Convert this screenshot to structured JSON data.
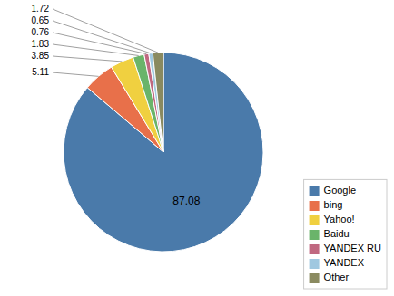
{
  "chart_data": {
    "type": "pie",
    "categories": [
      "Google",
      "bing",
      "Yahoo!",
      "Baidu",
      "YANDEX RU",
      "YANDEX",
      "Other"
    ],
    "values": [
      87.08,
      5.11,
      3.85,
      1.83,
      0.76,
      0.65,
      1.72
    ],
    "colors": [
      "#4a7aaa",
      "#e8704a",
      "#f0d040",
      "#6ab46a",
      "#c06880",
      "#a0c8e0",
      "#8a8a60"
    ],
    "data_labels": true,
    "legend": "lower right"
  }
}
